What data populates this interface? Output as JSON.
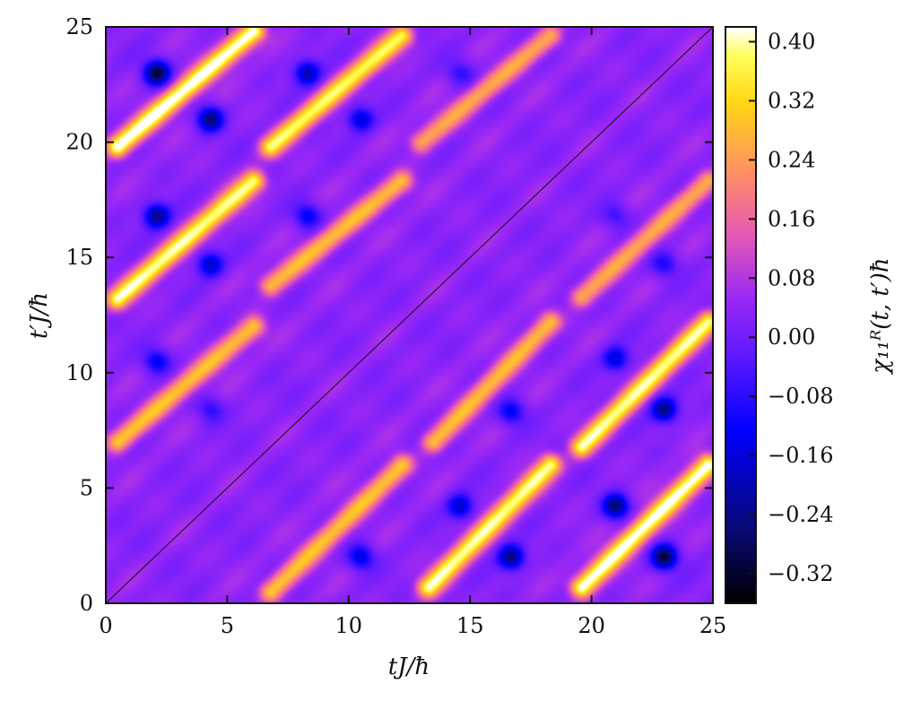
{
  "chart_data": {
    "type": "heatmap",
    "title": "",
    "xlabel": "tJ/ħ",
    "ylabel": "t′J/ħ",
    "colorbar_label": "χ₁₁ᴿ(t, t′)ħ",
    "xlim": [
      0,
      25
    ],
    "ylim": [
      0,
      25
    ],
    "x_ticks": [
      "0",
      "5",
      "10",
      "15",
      "20",
      "25"
    ],
    "y_ticks": [
      "0",
      "5",
      "10",
      "15",
      "20",
      "25"
    ],
    "colorbar_range": [
      -0.36,
      0.42
    ],
    "colorbar_ticks": [
      "0.40",
      "0.32",
      "0.24",
      "0.16",
      "0.08",
      "0.00",
      "−0.08",
      "−0.16",
      "−0.24",
      "−0.32"
    ],
    "colorbar_tick_values": [
      0.4,
      0.32,
      0.24,
      0.16,
      0.08,
      0.0,
      -0.08,
      -0.16,
      -0.24,
      -0.32
    ],
    "colormap": "gnuplot2",
    "diagonal_line": true,
    "grid": false,
    "bright_ridges": [
      {
        "x0": 0.5,
        "y0": 19.8,
        "x1": 6.1,
        "y1": 24.8,
        "peak": 0.41
      },
      {
        "x0": 6.8,
        "y0": 19.8,
        "x1": 12.2,
        "y1": 24.6,
        "peak": 0.33
      },
      {
        "x0": 13.0,
        "y0": 20.0,
        "x1": 18.3,
        "y1": 24.6,
        "peak": 0.22
      },
      {
        "x0": 0.5,
        "y0": 13.2,
        "x1": 6.1,
        "y1": 18.3,
        "peak": 0.36
      },
      {
        "x0": 6.8,
        "y0": 13.8,
        "x1": 12.2,
        "y1": 18.3,
        "peak": 0.25
      },
      {
        "x0": 0.5,
        "y0": 7.0,
        "x1": 6.1,
        "y1": 12.0,
        "peak": 0.26
      },
      {
        "x0": 6.8,
        "y0": 0.5,
        "x1": 12.2,
        "y1": 6.0,
        "peak": 0.26
      },
      {
        "x0": 13.3,
        "y0": 0.7,
        "x1": 18.3,
        "y1": 6.0,
        "peak": 0.36
      },
      {
        "x0": 13.5,
        "y0": 7.0,
        "x1": 18.3,
        "y1": 12.2,
        "peak": 0.25
      },
      {
        "x0": 19.6,
        "y0": 0.7,
        "x1": 24.8,
        "y1": 6.0,
        "peak": 0.41
      },
      {
        "x0": 19.6,
        "y0": 6.8,
        "x1": 24.8,
        "y1": 12.2,
        "peak": 0.35
      },
      {
        "x0": 19.6,
        "y0": 13.3,
        "x1": 24.8,
        "y1": 18.3,
        "peak": 0.22
      }
    ],
    "dark_spots": [
      {
        "x": 2.1,
        "y": 23.0,
        "v": -0.34
      },
      {
        "x": 4.3,
        "y": 21.0,
        "v": -0.29
      },
      {
        "x": 2.1,
        "y": 16.8,
        "v": -0.28
      },
      {
        "x": 4.3,
        "y": 14.7,
        "v": -0.22
      },
      {
        "x": 2.1,
        "y": 10.5,
        "v": -0.18
      },
      {
        "x": 4.3,
        "y": 8.4,
        "v": -0.12
      },
      {
        "x": 8.3,
        "y": 23.0,
        "v": -0.24
      },
      {
        "x": 10.5,
        "y": 21.0,
        "v": -0.2
      },
      {
        "x": 8.3,
        "y": 16.8,
        "v": -0.18
      },
      {
        "x": 14.6,
        "y": 23.0,
        "v": -0.12
      },
      {
        "x": 10.5,
        "y": 2.0,
        "v": -0.2
      },
      {
        "x": 14.6,
        "y": 4.2,
        "v": -0.22
      },
      {
        "x": 16.7,
        "y": 2.0,
        "v": -0.29
      },
      {
        "x": 16.7,
        "y": 8.3,
        "v": -0.18
      },
      {
        "x": 21.0,
        "y": 4.2,
        "v": -0.3
      },
      {
        "x": 23.0,
        "y": 2.0,
        "v": -0.34
      },
      {
        "x": 21.0,
        "y": 10.6,
        "v": -0.2
      },
      {
        "x": 23.0,
        "y": 8.4,
        "v": -0.28
      },
      {
        "x": 23.0,
        "y": 14.7,
        "v": -0.14
      },
      {
        "x": 21.0,
        "y": 16.8,
        "v": -0.1
      }
    ]
  }
}
